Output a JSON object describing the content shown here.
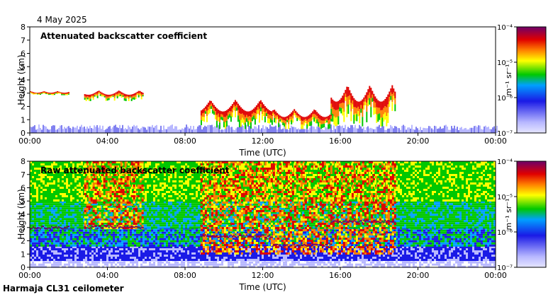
{
  "date": "4 May 2025",
  "instrument": "Harmaja CL31 ceilometer",
  "colors": {
    "low": "#b8b8ff",
    "blue": "#1a1ae6",
    "green": "#00c800",
    "yellow": "#ffff00",
    "orange": "#ff8000",
    "red": "#e00000",
    "high": "#6e0069"
  },
  "chart_data": [
    {
      "type": "heatmap",
      "title": "Attenuated backscatter coefficient",
      "xlabel": "Time (UTC)",
      "ylabel": "Height (km)",
      "xticks": [
        "00:00",
        "04:00",
        "08:00",
        "12:00",
        "16:00",
        "20:00",
        "00:00"
      ],
      "xlim_hours": [
        0,
        24
      ],
      "yticks": [
        "0",
        "1",
        "2",
        "3",
        "4",
        "5",
        "6",
        "7",
        "8"
      ],
      "ylim": [
        0,
        8
      ],
      "colorbar": {
        "label": "m⁻¹ sr⁻¹",
        "scale": "log",
        "ticks": [
          "10⁻⁷",
          "10⁻⁶",
          "10⁻⁵",
          "10⁻⁴"
        ],
        "range": [
          1e-07,
          0.0001
        ]
      },
      "layers": [
        {
          "start_h": 0.0,
          "end_h": 2.0,
          "base_km": 2.85,
          "top_km": 3.15
        },
        {
          "start_h": 2.8,
          "end_h": 5.8,
          "base_km": 2.4,
          "top_km": 3.2
        },
        {
          "start_h": 8.8,
          "end_h": 12.5,
          "base_km": 0.3,
          "top_km": 2.5
        },
        {
          "start_h": 12.5,
          "end_h": 15.5,
          "base_km": 0.3,
          "top_km": 1.8
        },
        {
          "start_h": 15.5,
          "end_h": 18.8,
          "base_km": 0.5,
          "top_km": 3.6
        }
      ]
    },
    {
      "type": "heatmap",
      "title": "Raw attenuated backscatter coefficient",
      "xlabel": "Time (UTC)",
      "ylabel": "Height (km)",
      "xticks": [
        "00:00",
        "04:00",
        "08:00",
        "12:00",
        "16:00",
        "20:00",
        "00:00"
      ],
      "xlim_hours": [
        0,
        24
      ],
      "yticks": [
        "0",
        "1",
        "2",
        "3",
        "4",
        "5",
        "6",
        "7",
        "8"
      ],
      "ylim": [
        0,
        8
      ],
      "colorbar": {
        "label": "m⁻¹ sr⁻¹",
        "scale": "log",
        "ticks": [
          "10⁻⁷",
          "10⁻⁶",
          "10⁻⁵",
          "10⁻⁴"
        ],
        "range": [
          1e-07,
          0.0001
        ]
      }
    }
  ]
}
